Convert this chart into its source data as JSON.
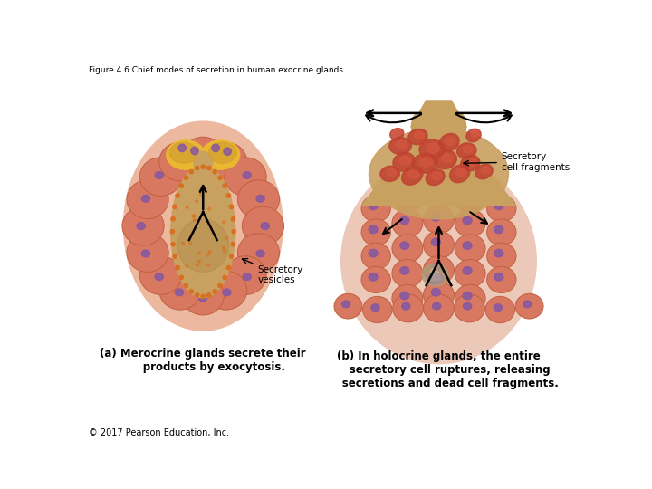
{
  "title": "Figure 4.6 Chief modes of secretion in human exocrine glands.",
  "copyright": "© 2017 Pearson Education, Inc.",
  "label_a_title": "(a) Merocrine glands secrete their\n      products by exocytosis.",
  "label_b_title": "(b) In holocrine glands, the entire\n      secretory cell ruptures, releasing\n      secretions and dead cell fragments.",
  "label_secretory_vesicles": "Secretory\nvesicles",
  "label_secretory_cell_fragments": "Secretory\ncell fragments",
  "bg_color": "#ffffff",
  "salmon_color": "#D97860",
  "salmon_dark": "#C06040",
  "salmon_light": "#E89878",
  "pink_outer": "#EDB8A0",
  "pink_outer2": "#F0C8B8",
  "yellow_gold": "#D4A030",
  "yellow_bright": "#E8B830",
  "purple_nucleus": "#8858A0",
  "orange_dots": "#D87020",
  "lumen_tan": "#C8A060",
  "lumen_dark": "#A88040",
  "holo_tan": "#C8A060",
  "holo_pink_outer": "#ECC8B8",
  "frag_red": "#C04030",
  "frag_red2": "#D85840"
}
